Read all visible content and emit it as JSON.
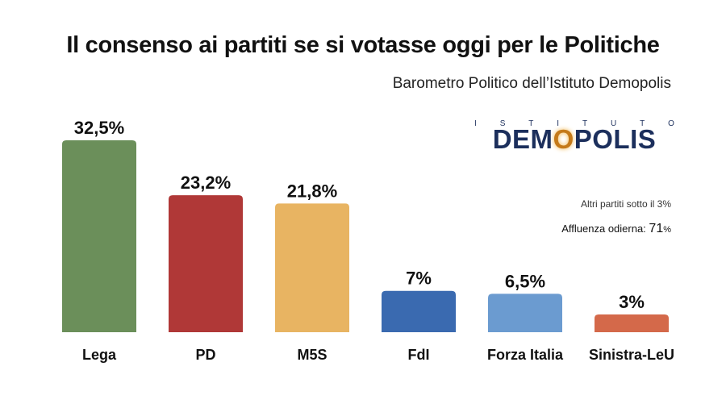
{
  "title": "Il consenso ai partiti se si votasse oggi per le Politiche",
  "subtitle": "Barometro Politico dell’Istituto Demopolis",
  "logo": {
    "top_letters": [
      "I",
      "S",
      "T",
      "I",
      "T",
      "U",
      "T",
      "O"
    ],
    "name_pre": "DEM",
    "name_o": "O",
    "name_post": "POLIS"
  },
  "notes": {
    "altri": "Altri partiti sotto il 3%",
    "affluenza_label": "Affluenza odierna:",
    "affluenza_value": "71",
    "affluenza_unit": "%"
  },
  "chart_data": {
    "type": "bar",
    "categories": [
      "Lega",
      "PD",
      "M5S",
      "FdI",
      "Forza Italia",
      "Sinistra-LeU"
    ],
    "values": [
      32.5,
      23.2,
      21.8,
      7,
      6.5,
      3
    ],
    "value_labels": [
      "32,5%",
      "23,2%",
      "21,8%",
      "7%",
      "6,5%",
      "3%"
    ],
    "colors": [
      "#6b8f5a",
      "#b03837",
      "#e8b462",
      "#3a6ab0",
      "#6b9bd0",
      "#d4694a"
    ],
    "title": "Il consenso ai partiti se si votasse oggi per le Politiche",
    "xlabel": "",
    "ylabel": "",
    "ylim": [
      0,
      32.5
    ],
    "grid": false,
    "legend": "none"
  }
}
